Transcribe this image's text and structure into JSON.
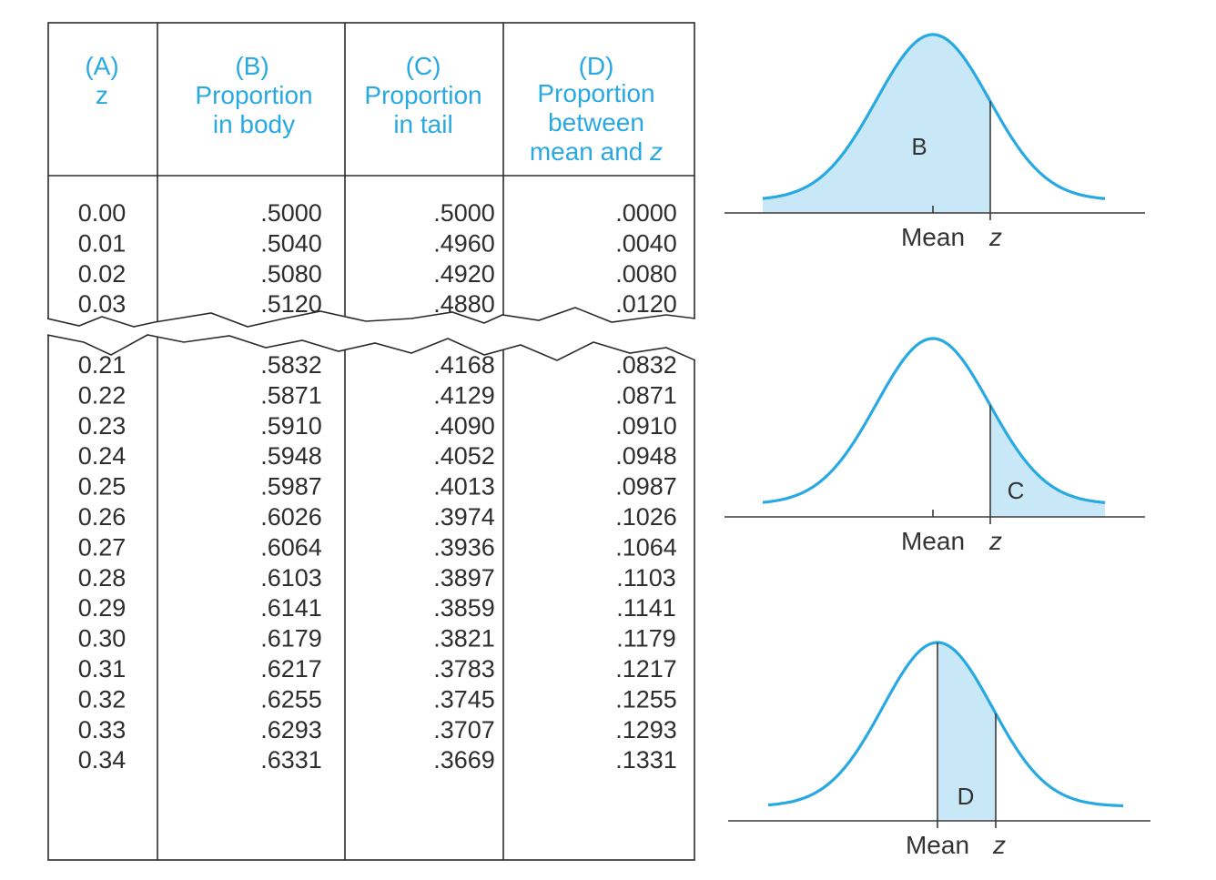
{
  "table": {
    "headers": [
      {
        "letter": "(A)",
        "lines": [],
        "italic_line": "z"
      },
      {
        "letter": "(B)",
        "lines": [
          "Proportion",
          "in body"
        ],
        "italic_line": ""
      },
      {
        "letter": "(C)",
        "lines": [
          "Proportion",
          "in tail"
        ],
        "italic_line": ""
      },
      {
        "letter": "(D)",
        "lines": [
          "Proportion",
          "between"
        ],
        "last_line_text": "mean and ",
        "last_line_italic": "z"
      }
    ],
    "rows_top": [
      [
        "0.00",
        ".5000",
        ".5000",
        ".0000"
      ],
      [
        "0.01",
        ".5040",
        ".4960",
        ".0040"
      ],
      [
        "0.02",
        ".5080",
        ".4920",
        ".0080"
      ],
      [
        "0.03",
        ".5120",
        ".4880",
        ".0120"
      ]
    ],
    "rows_bottom": [
      [
        "0.21",
        ".5832",
        ".4168",
        ".0832"
      ],
      [
        "0.22",
        ".5871",
        ".4129",
        ".0871"
      ],
      [
        "0.23",
        ".5910",
        ".4090",
        ".0910"
      ],
      [
        "0.24",
        ".5948",
        ".4052",
        ".0948"
      ],
      [
        "0.25",
        ".5987",
        ".4013",
        ".0987"
      ],
      [
        "0.26",
        ".6026",
        ".3974",
        ".1026"
      ],
      [
        "0.27",
        ".6064",
        ".3936",
        ".1064"
      ],
      [
        "0.28",
        ".6103",
        ".3897",
        ".1103"
      ],
      [
        "0.29",
        ".6141",
        ".3859",
        ".1141"
      ],
      [
        "0.30",
        ".6179",
        ".3821",
        ".1179"
      ],
      [
        "0.31",
        ".6217",
        ".3783",
        ".1217"
      ],
      [
        "0.32",
        ".6255",
        ".3745",
        ".1255"
      ],
      [
        "0.33",
        ".6293",
        ".3707",
        ".1293"
      ],
      [
        "0.34",
        ".6331",
        ".3669",
        ".1331"
      ]
    ]
  },
  "diagrams": [
    {
      "region": "B",
      "shading": "body",
      "mean_label": "Mean",
      "z_label": "z"
    },
    {
      "region": "C",
      "shading": "tail",
      "mean_label": "Mean",
      "z_label": "z"
    },
    {
      "region": "D",
      "shading": "between mean and z",
      "mean_label": "Mean",
      "z_label": "z"
    }
  ],
  "colors": {
    "accent": "#29a9e1",
    "shade": "#c8e8f7",
    "text": "#2e2e2e",
    "rule": "#2b2b2b"
  }
}
